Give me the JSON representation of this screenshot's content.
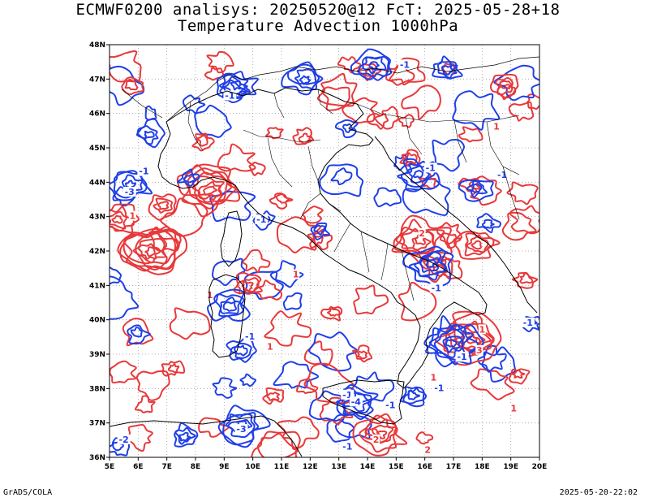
{
  "header": {
    "line1": "ECMWF0200 analisys: 20250520@12 FcT: 2025-05-28+18",
    "line2": "Temperature Advection 1000hPa"
  },
  "footer": {
    "left": "GrADS/COLA",
    "right": "2025-05-20-22:02"
  },
  "map": {
    "lon_range": [
      5,
      20
    ],
    "lat_range": [
      36,
      48
    ],
    "lon_labels": [
      "5E",
      "6E",
      "7E",
      "8E",
      "9E",
      "10E",
      "11E",
      "12E",
      "13E",
      "14E",
      "15E",
      "16E",
      "17E",
      "18E",
      "19E",
      "20E"
    ],
    "lat_labels": [
      "36N",
      "37N",
      "38N",
      "39N",
      "40N",
      "41N",
      "42N",
      "43N",
      "44N",
      "45N",
      "46N",
      "47N",
      "48N"
    ],
    "grid": "dotted every 1 degree",
    "colors": {
      "warm_advection": "#e8383a",
      "cold_advection": "#1f3fe8",
      "coastline": "#000000",
      "grid": "#9a9a9a"
    },
    "contour_labels": [
      {
        "text": "-1",
        "lon": 15.3,
        "lat": 47.4,
        "sign": "cold"
      },
      {
        "text": "-1",
        "lon": 9.2,
        "lat": 46.5,
        "sign": "cold"
      },
      {
        "text": "-1",
        "lon": 16.2,
        "lat": 44.4,
        "sign": "cold"
      },
      {
        "text": "-1",
        "lon": 18.7,
        "lat": 44.2,
        "sign": "cold"
      },
      {
        "text": "-1",
        "lon": 6.2,
        "lat": 44.3,
        "sign": "cold"
      },
      {
        "text": "-3",
        "lon": 5.7,
        "lat": 43.7,
        "sign": "cold"
      },
      {
        "text": "-1",
        "lon": 10.3,
        "lat": 42.9,
        "sign": "cold"
      },
      {
        "text": "-1",
        "lon": 16.4,
        "lat": 40.9,
        "sign": "cold"
      },
      {
        "text": "-1",
        "lon": 9.9,
        "lat": 39.5,
        "sign": "cold"
      },
      {
        "text": "-1",
        "lon": 13.3,
        "lat": 37.8,
        "sign": "cold"
      },
      {
        "text": "-4",
        "lon": 13.6,
        "lat": 37.6,
        "sign": "cold"
      },
      {
        "text": "-1",
        "lon": 14.8,
        "lat": 37.5,
        "sign": "cold"
      },
      {
        "text": "-1",
        "lon": 16.5,
        "lat": 38.0,
        "sign": "cold"
      },
      {
        "text": "-3",
        "lon": 9.6,
        "lat": 36.8,
        "sign": "cold"
      },
      {
        "text": "-2",
        "lon": 5.5,
        "lat": 36.5,
        "sign": "cold"
      },
      {
        "text": "-1",
        "lon": 13.3,
        "lat": 36.3,
        "sign": "cold"
      },
      {
        "text": "-1",
        "lon": 19.6,
        "lat": 39.9,
        "sign": "cold"
      },
      {
        "text": "-1",
        "lon": 17.3,
        "lat": 38.9,
        "sign": "cold"
      },
      {
        "text": "1",
        "lon": 5.8,
        "lat": 43.0,
        "sign": "warm"
      },
      {
        "text": "2",
        "lon": 15.9,
        "lat": 42.5,
        "sign": "warm"
      },
      {
        "text": "2",
        "lon": 14.3,
        "lat": 36.5,
        "sign": "warm"
      },
      {
        "text": "2",
        "lon": 16.1,
        "lat": 36.2,
        "sign": "warm"
      },
      {
        "text": "1",
        "lon": 18.0,
        "lat": 39.7,
        "sign": "warm"
      },
      {
        "text": "3",
        "lon": 17.9,
        "lat": 39.1,
        "sign": "warm"
      },
      {
        "text": "1",
        "lon": 8.5,
        "lat": 40.7,
        "sign": "warm"
      },
      {
        "text": "1",
        "lon": 11.5,
        "lat": 41.3,
        "sign": "warm"
      },
      {
        "text": "1",
        "lon": 10.6,
        "lat": 39.2,
        "sign": "warm"
      },
      {
        "text": "1",
        "lon": 16.3,
        "lat": 38.3,
        "sign": "warm"
      },
      {
        "text": "1",
        "lon": 19.1,
        "lat": 37.4,
        "sign": "warm"
      },
      {
        "text": "1",
        "lon": 18.5,
        "lat": 45.6,
        "sign": "warm"
      }
    ],
    "centers": {
      "warm": [
        {
          "lon": 8.5,
          "lat": 43.8,
          "n": 6
        },
        {
          "lon": 6.4,
          "lat": 42.0,
          "n": 7
        },
        {
          "lon": 5.3,
          "lat": 42.9,
          "n": 4
        },
        {
          "lon": 6.9,
          "lat": 43.3,
          "n": 3
        },
        {
          "lon": 15.8,
          "lat": 42.3,
          "n": 6
        },
        {
          "lon": 17.6,
          "lat": 39.4,
          "n": 6
        },
        {
          "lon": 17.8,
          "lat": 42.2,
          "n": 4
        },
        {
          "lon": 14.5,
          "lat": 36.7,
          "n": 5
        },
        {
          "lon": 9.8,
          "lat": 41.0,
          "n": 3
        },
        {
          "lon": 16.5,
          "lat": 41.5,
          "n": 3
        },
        {
          "lon": 8.3,
          "lat": 45.2,
          "n": 2
        },
        {
          "lon": 11.0,
          "lat": 43.5,
          "n": 2
        },
        {
          "lon": 12.8,
          "lat": 40.2,
          "n": 2
        },
        {
          "lon": 18.8,
          "lat": 46.8,
          "n": 3
        },
        {
          "lon": 11.8,
          "lat": 45.3,
          "n": 2
        },
        {
          "lon": 19.3,
          "lat": 38.4,
          "n": 2
        },
        {
          "lon": 13.8,
          "lat": 39.0,
          "n": 2
        },
        {
          "lon": 7.2,
          "lat": 38.6,
          "n": 2
        },
        {
          "lon": 10.7,
          "lat": 37.8,
          "n": 2
        },
        {
          "lon": 15.5,
          "lat": 44.7,
          "n": 2
        },
        {
          "lon": 12.3,
          "lat": 42.3,
          "n": 2
        },
        {
          "lon": 5.8,
          "lat": 46.8,
          "n": 2
        },
        {
          "lon": 19.5,
          "lat": 41.2,
          "n": 2
        },
        {
          "lon": 14.1,
          "lat": 47.2,
          "n": 2
        }
      ],
      "cold": [
        {
          "lon": 9.4,
          "lat": 46.8,
          "n": 4
        },
        {
          "lon": 11.8,
          "lat": 47.0,
          "n": 4
        },
        {
          "lon": 14.2,
          "lat": 47.4,
          "n": 4
        },
        {
          "lon": 16.8,
          "lat": 47.3,
          "n": 3
        },
        {
          "lon": 6.4,
          "lat": 45.4,
          "n": 3
        },
        {
          "lon": 5.7,
          "lat": 43.9,
          "n": 4
        },
        {
          "lon": 15.8,
          "lat": 44.2,
          "n": 4
        },
        {
          "lon": 17.8,
          "lat": 43.8,
          "n": 3
        },
        {
          "lon": 16.2,
          "lat": 41.6,
          "n": 5
        },
        {
          "lon": 16.9,
          "lat": 39.3,
          "n": 6
        },
        {
          "lon": 9.2,
          "lat": 40.4,
          "n": 4
        },
        {
          "lon": 9.6,
          "lat": 39.1,
          "n": 3
        },
        {
          "lon": 13.6,
          "lat": 37.6,
          "n": 4
        },
        {
          "lon": 15.6,
          "lat": 37.8,
          "n": 3
        },
        {
          "lon": 9.6,
          "lat": 36.9,
          "n": 5
        },
        {
          "lon": 7.6,
          "lat": 36.6,
          "n": 3
        },
        {
          "lon": 5.3,
          "lat": 36.3,
          "n": 2
        },
        {
          "lon": 10.4,
          "lat": 42.9,
          "n": 2
        },
        {
          "lon": 12.3,
          "lat": 42.6,
          "n": 2
        },
        {
          "lon": 19.7,
          "lat": 39.9,
          "n": 2
        },
        {
          "lon": 6.0,
          "lat": 39.6,
          "n": 2
        },
        {
          "lon": 13.3,
          "lat": 45.6,
          "n": 2
        },
        {
          "lon": 7.8,
          "lat": 44.1,
          "n": 2
        },
        {
          "lon": 18.2,
          "lat": 42.8,
          "n": 2
        }
      ]
    }
  }
}
